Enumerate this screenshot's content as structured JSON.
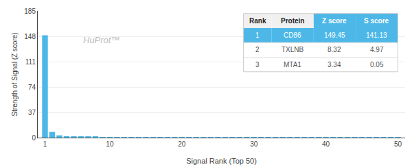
{
  "chart_data": {
    "type": "bar",
    "x": [
      1,
      2,
      3,
      4,
      5,
      6,
      7,
      8,
      9,
      10,
      11,
      12,
      13,
      14,
      15,
      16,
      17,
      18,
      19,
      20,
      21,
      22,
      23,
      24,
      25,
      26,
      27,
      28,
      29,
      30,
      31,
      32,
      33,
      34,
      35,
      36,
      37,
      38,
      39,
      40,
      41,
      42,
      43,
      44,
      45,
      46,
      47,
      48,
      49,
      50
    ],
    "values": [
      149.45,
      8.32,
      3.34,
      2.1,
      1.8,
      1.5,
      1.3,
      1.1,
      1.0,
      0.9,
      0.85,
      0.8,
      0.75,
      0.7,
      0.65,
      0.6,
      0.58,
      0.55,
      0.52,
      0.5,
      0.48,
      0.46,
      0.44,
      0.42,
      0.4,
      0.38,
      0.36,
      0.34,
      0.32,
      0.3,
      0.28,
      0.27,
      0.26,
      0.25,
      0.24,
      0.23,
      0.22,
      0.21,
      0.2,
      0.19,
      0.18,
      0.17,
      0.16,
      0.15,
      0.14,
      0.13,
      0.12,
      0.11,
      0.1,
      0.09
    ],
    "color": "#4db8e8",
    "xlabel": "Signal Rank (Top 50)",
    "ylabel": "Strength of Signal (Z score)",
    "xlim": [
      0,
      51
    ],
    "xticks": [
      1,
      10,
      20,
      30,
      40,
      50
    ],
    "ylim": [
      0,
      185
    ],
    "yticks": [
      0,
      37,
      74,
      111,
      148,
      185
    ],
    "grid": "y",
    "annotations": [
      "HuProt™"
    ],
    "table": {
      "columns": [
        "Rank",
        "Protein",
        "Z score",
        "S score"
      ],
      "rows": [
        [
          "1",
          "CD86",
          "149.45",
          "141.13"
        ],
        [
          "2",
          "TXLNB",
          "8.32",
          "4.97"
        ],
        [
          "3",
          "MTA1",
          "3.34",
          "0.05"
        ]
      ]
    }
  }
}
